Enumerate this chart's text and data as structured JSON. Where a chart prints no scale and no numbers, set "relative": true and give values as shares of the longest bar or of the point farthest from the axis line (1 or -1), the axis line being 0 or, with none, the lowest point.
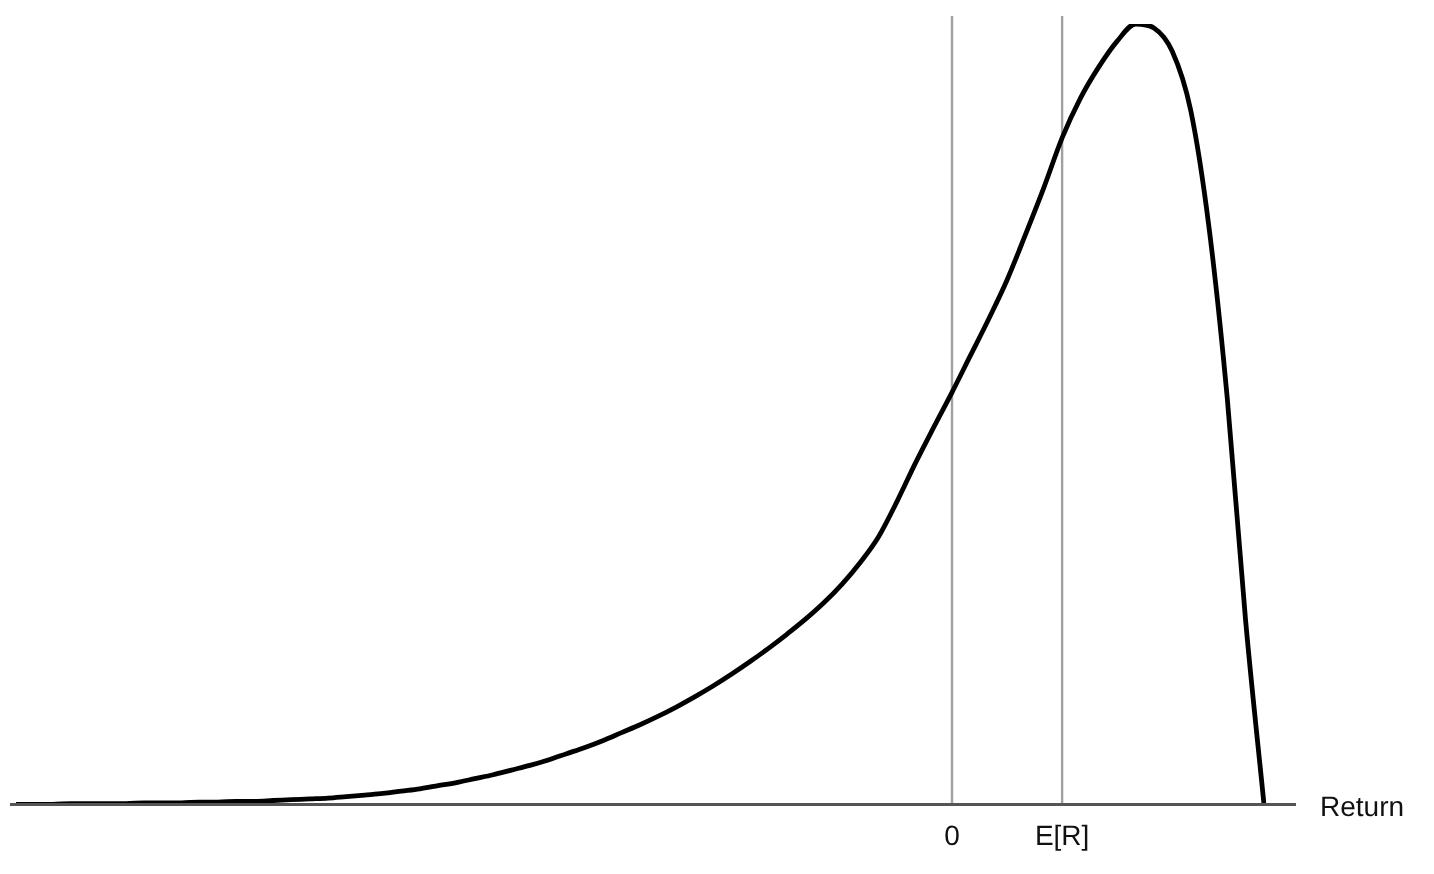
{
  "chart_data": {
    "type": "line",
    "relative": true,
    "xlabel": "Return",
    "categories": [
      null,
      null,
      null,
      null,
      null,
      null,
      null,
      null,
      null,
      null,
      null,
      null,
      null,
      null,
      null,
      null,
      null,
      null,
      null,
      null,
      null,
      null,
      null,
      null,
      null,
      null,
      null,
      null,
      null,
      null,
      null,
      null,
      null,
      null,
      null,
      null,
      null,
      null,
      null,
      null,
      null,
      null,
      null,
      null,
      null,
      null,
      null,
      null,
      null,
      null,
      null,
      "0",
      null,
      null,
      null,
      null,
      null,
      "E[R]",
      null,
      null,
      null,
      null,
      null,
      null,
      null,
      null,
      null,
      null,
      null
    ],
    "series": [
      {
        "color": "#000000",
        "values": [
          0,
          0,
          0,
          0.001,
          0.001,
          0.001,
          0.001,
          0.002,
          0.002,
          0.002,
          0.003,
          0.003,
          0.004,
          0.004,
          0.005,
          0.006,
          0.007,
          0.008,
          0.01,
          0.012,
          0.014,
          0.017,
          0.02,
          0.024,
          0.028,
          0.033,
          0.038,
          0.044,
          0.05,
          0.057,
          0.065,
          0.073,
          0.082,
          0.092,
          0.102,
          0.113,
          0.125,
          0.138,
          0.152,
          0.167,
          0.183,
          0.2,
          0.218,
          0.237,
          0.258,
          0.282,
          0.31,
          0.343,
          0.388,
          0.437,
          0.483,
          0.528,
          0.575,
          0.622,
          0.672,
          0.73,
          0.79,
          0.854,
          0.905,
          0.945,
          0.978,
          1,
          0.995,
          0.965,
          0.89,
          0.74,
          0.52,
          0.235,
          0
        ]
      }
    ],
    "grid": "x",
    "legend": false,
    "marker": "none",
    "line_style": "solid"
  }
}
